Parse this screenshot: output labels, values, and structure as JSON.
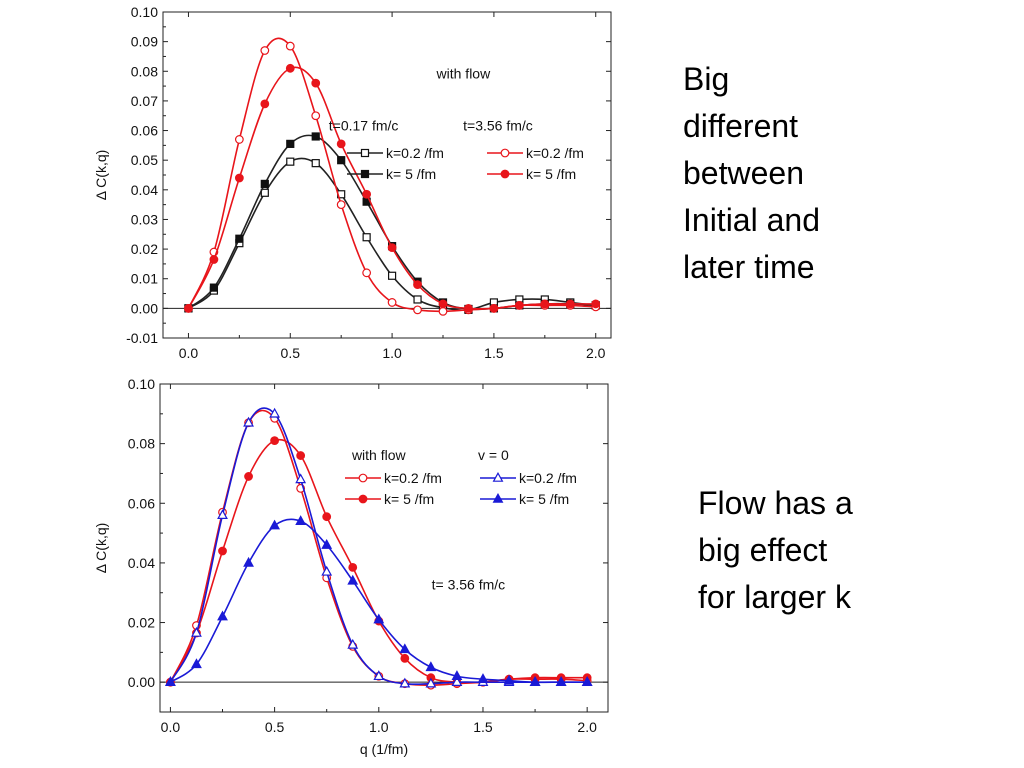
{
  "notes": {
    "top": [
      "Big",
      "different",
      "between",
      "Initial and",
      "later time"
    ],
    "bottom": [
      "Flow has a",
      "big effect",
      "for larger k"
    ]
  },
  "chart_data": [
    {
      "type": "line",
      "ylabel": "Δ C(k,q)",
      "xlabel": "",
      "xlim": [
        -0.125,
        2.075
      ],
      "ylim": [
        -0.01,
        0.1
      ],
      "xticks": [
        "0.0",
        "0.5",
        "1.0",
        "1.5",
        "2.0"
      ],
      "xtick_values": [
        0,
        0.5,
        1,
        1.5,
        2
      ],
      "yticks": [
        "-0.01",
        "0.00",
        "0.01",
        "0.02",
        "0.03",
        "0.04",
        "0.05",
        "0.06",
        "0.07",
        "0.08",
        "0.09",
        "0.10"
      ],
      "ytick_values": [
        -0.01,
        0,
        0.01,
        0.02,
        0.03,
        0.04,
        0.05,
        0.06,
        0.07,
        0.08,
        0.09,
        0.1
      ],
      "annotations": [
        {
          "text": "with flow",
          "x": 1.35,
          "y": 0.0775
        },
        {
          "text": "t=0.17 fm/c",
          "x": 0.86,
          "y": 0.06
        },
        {
          "text": "t=3.56 fm/c",
          "x": 1.52,
          "y": 0.06
        }
      ],
      "legend": [
        {
          "columns": [
            "t=0.17 fm/c"
          ],
          "label": "k=0.2 /fm",
          "series": 0
        },
        {
          "label": "k=  5  /fm",
          "series": 1
        },
        {
          "label": "k=0.2 /fm",
          "series": 2
        },
        {
          "label": "k=  5  /fm",
          "series": 3
        }
      ],
      "grid": false,
      "x": [
        0,
        0.125,
        0.25,
        0.375,
        0.5,
        0.625,
        0.75,
        0.875,
        1.0,
        1.125,
        1.25,
        1.375,
        1.5,
        1.625,
        1.75,
        1.875,
        2.0
      ],
      "series": [
        {
          "name": "",
          "color": "#222222",
          "marker": "square-open",
          "values": [
            0,
            0.006,
            0.022,
            0.039,
            0.0495,
            0.049,
            0.0385,
            0.024,
            0.011,
            0.003,
            0.0002,
            -0.0005,
            0.002,
            0.003,
            0.003,
            0.002,
            0.001
          ]
        },
        {
          "name": "",
          "color": "#222222",
          "marker": "square-filled",
          "values": [
            0,
            0.007,
            0.0235,
            0.042,
            0.0555,
            0.058,
            0.05,
            0.036,
            0.021,
            0.009,
            0.002,
            -0.0002,
            0.0,
            0.001,
            0.0015,
            0.0015,
            0.001
          ]
        },
        {
          "name": "",
          "color": "#e8151b",
          "marker": "circle-open",
          "values": [
            0,
            0.019,
            0.057,
            0.087,
            0.0885,
            0.065,
            0.035,
            0.012,
            0.002,
            -0.0005,
            -0.001,
            -0.0005,
            0.0,
            0.001,
            0.001,
            0.001,
            0.0005
          ]
        },
        {
          "name": "",
          "color": "#e8151b",
          "marker": "circle-filled",
          "values": [
            0,
            0.0165,
            0.044,
            0.069,
            0.081,
            0.076,
            0.0555,
            0.0385,
            0.0205,
            0.008,
            0.0015,
            0.0,
            0.0,
            0.001,
            0.0015,
            0.0015,
            0.0015
          ]
        }
      ]
    },
    {
      "type": "line",
      "ylabel": "Δ C(k,q)",
      "xlabel": "q (1/fm)",
      "xlim": [
        -0.05,
        2.1
      ],
      "ylim": [
        -0.01,
        0.1
      ],
      "xticks": [
        "0.0",
        "0.5",
        "1.0",
        "1.5",
        "2.0"
      ],
      "xtick_values": [
        0,
        0.5,
        1,
        1.5,
        2
      ],
      "yticks": [
        "0.00",
        "0.02",
        "0.04",
        "0.06",
        "0.08",
        "0.10"
      ],
      "ytick_values": [
        0,
        0.02,
        0.04,
        0.06,
        0.08,
        0.1
      ],
      "annotations": [
        {
          "text": "with flow",
          "x": 1.0,
          "y": 0.0745
        },
        {
          "text": "v = 0",
          "x": 1.55,
          "y": 0.0745
        },
        {
          "text": "t= 3.56 fm/c",
          "x": 1.43,
          "y": 0.031
        }
      ],
      "legend": [
        {
          "label": "k=0.2 /fm",
          "series": 0
        },
        {
          "label": "k=  5  /fm",
          "series": 1
        },
        {
          "label": "k=0.2 /fm",
          "series": 2
        },
        {
          "label": "k=  5  /fm",
          "series": 3
        }
      ],
      "grid": false,
      "x": [
        0,
        0.125,
        0.25,
        0.375,
        0.5,
        0.625,
        0.75,
        0.875,
        1.0,
        1.125,
        1.25,
        1.375,
        1.5,
        1.625,
        1.75,
        1.875,
        2.0
      ],
      "series": [
        {
          "name": "",
          "color": "#e8151b",
          "marker": "circle-open",
          "values": [
            0,
            0.019,
            0.057,
            0.087,
            0.0885,
            0.065,
            0.035,
            0.012,
            0.002,
            -0.0005,
            -0.001,
            -0.0005,
            0.0,
            0.001,
            0.001,
            0.001,
            0.0005
          ]
        },
        {
          "name": "",
          "color": "#e8151b",
          "marker": "circle-filled",
          "values": [
            0,
            0.0165,
            0.044,
            0.069,
            0.081,
            0.076,
            0.0555,
            0.0385,
            0.0205,
            0.008,
            0.0015,
            0.0,
            0.0,
            0.001,
            0.0015,
            0.0015,
            0.0015
          ]
        },
        {
          "name": "",
          "color": "#1a1ad6",
          "marker": "triangle-open",
          "values": [
            0,
            0.0165,
            0.056,
            0.087,
            0.09,
            0.068,
            0.037,
            0.0125,
            0.002,
            -0.0005,
            -0.0005,
            0.0,
            0.0,
            0.0,
            0.0,
            0.0,
            0.0
          ]
        },
        {
          "name": "",
          "color": "#1a1ad6",
          "marker": "triangle-filled",
          "values": [
            0,
            0.006,
            0.022,
            0.04,
            0.0525,
            0.054,
            0.046,
            0.034,
            0.021,
            0.011,
            0.005,
            0.002,
            0.001,
            0.0005,
            0.0,
            0.0,
            0.0
          ]
        }
      ]
    }
  ]
}
